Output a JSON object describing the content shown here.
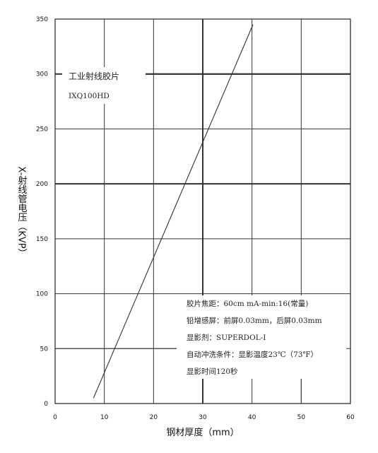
{
  "chart_data": {
    "type": "line",
    "xlabel": "钢材厚度（mm）",
    "ylabel": "X-射线管电压（KVP）",
    "xlim": [
      0,
      60
    ],
    "ylim": [
      0,
      350
    ],
    "x_ticks": [
      "0",
      "10",
      "20",
      "30",
      "40",
      "50",
      "60"
    ],
    "y_ticks": [
      "0",
      "50",
      "100",
      "150",
      "200",
      "250",
      "300",
      "350"
    ],
    "grid": true,
    "series": [
      {
        "x": [
          7.8,
          40.2
        ],
        "y": [
          5,
          345
        ]
      }
    ],
    "annotations": {
      "film_type": "工业射线胶片",
      "film_model": "IXQ100HD",
      "conditions": [
        "胶片焦距：60cm  mA-min:16(常量)",
        "铅增感屏：前屏0.03mm，后屏0.03mm",
        "显影剂：SUPERDOL-I",
        "自动冲洗条件：显影温度23℃（73℉）",
        "显影时间120秒"
      ]
    }
  }
}
